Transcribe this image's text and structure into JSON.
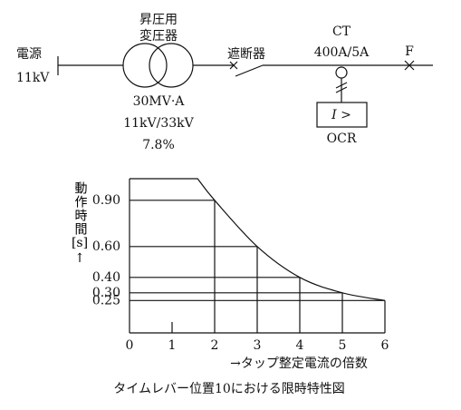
{
  "diagram": {
    "source_label": [
      "電源",
      "11kV"
    ],
    "transformer_label": [
      "昇圧用",
      "変圧器"
    ],
    "transformer_specs": [
      "30MV·A",
      "11kV/33kV",
      "7.8%"
    ],
    "breaker_label": "遮断器",
    "ct_label": [
      "CT",
      "400A/5A"
    ],
    "fault_label": "F",
    "relay_symbol": "I >",
    "relay_label": "OCR"
  },
  "graph": {
    "y_label": [
      "動作時間",
      "[s]",
      "↑"
    ],
    "x_label": "→タップ整定電流の倍数",
    "caption": "タイムレバー位置10における限時特性図",
    "xlim": [
      0,
      6
    ],
    "ylim": [
      0.04,
      1.04
    ],
    "xticks": [
      0,
      1,
      2,
      3,
      4,
      5,
      6
    ],
    "yticks": [
      {
        "value": 0.25,
        "label": "0.25"
      },
      {
        "value": 0.3,
        "label": "0.30"
      },
      {
        "value": 0.4,
        "label": "0.40"
      },
      {
        "value": 0.6,
        "label": "0.60"
      },
      {
        "value": 0.9,
        "label": "0.90"
      }
    ],
    "curve": {
      "x": [
        0,
        1.6,
        2,
        3,
        4,
        5,
        6
      ],
      "y": [
        1.04,
        1.04,
        0.9,
        0.6,
        0.4,
        0.3,
        0.25
      ]
    }
  }
}
